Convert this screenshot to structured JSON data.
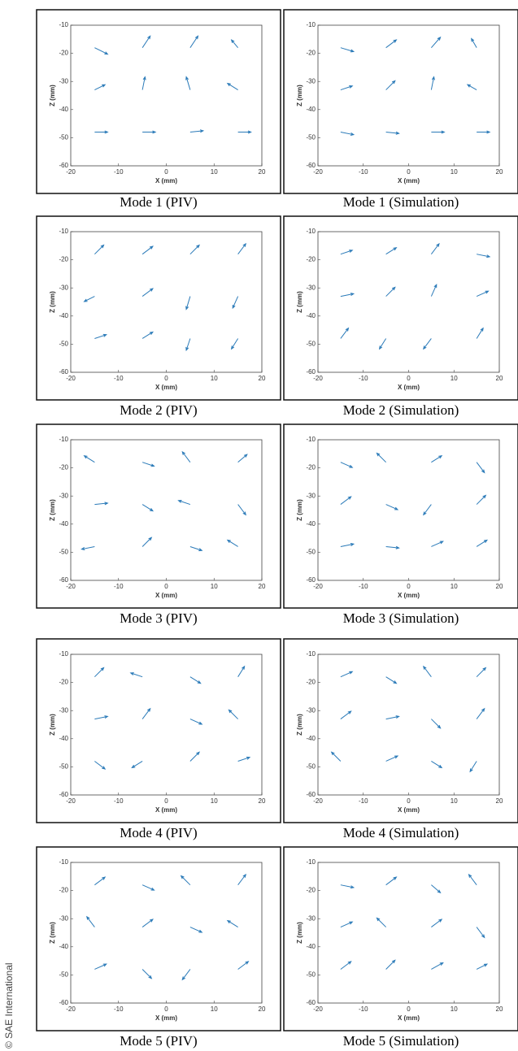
{
  "credit": "© SAE International",
  "chart_data": [
    {
      "type": "quiver",
      "title": "Mode 1 (PIV)",
      "xlabel": "X (mm)",
      "ylabel": "Z (mm)",
      "xlim": [
        -20,
        20
      ],
      "ylim": [
        -60,
        -10
      ],
      "xticks": [
        -20,
        -10,
        0,
        10,
        20
      ],
      "yticks": [
        -10,
        -20,
        -30,
        -40,
        -50,
        -60
      ],
      "color": "#2a7ab8",
      "x": [
        -15,
        -5,
        5,
        15,
        -15,
        -5,
        5,
        15,
        -15,
        -5,
        5,
        15
      ],
      "y": [
        -18,
        -18,
        -18,
        -18,
        -33,
        -33,
        -33,
        -33,
        -48,
        -48,
        -48,
        -48
      ],
      "u": [
        1,
        0.6,
        0.6,
        -0.5,
        0.8,
        0.2,
        -0.3,
        -0.8,
        1,
        1,
        1,
        1
      ],
      "v": [
        -0.5,
        0.9,
        0.9,
        0.6,
        0.4,
        1,
        1,
        0.5,
        0,
        0,
        0.1,
        0
      ]
    },
    {
      "type": "quiver",
      "title": "Mode 1 (Simulation)",
      "xlabel": "X (mm)",
      "ylabel": "Z (mm)",
      "xlim": [
        -20,
        20
      ],
      "ylim": [
        -60,
        -10
      ],
      "xticks": [
        -20,
        -10,
        0,
        10,
        20
      ],
      "yticks": [
        -10,
        -20,
        -30,
        -40,
        -50,
        -60
      ],
      "color": "#2a7ab8",
      "x": [
        -15,
        -5,
        5,
        15,
        -15,
        -5,
        5,
        15,
        -15,
        -5,
        5,
        15
      ],
      "y": [
        -18,
        -18,
        -18,
        -18,
        -33,
        -33,
        -33,
        -33,
        -48,
        -48,
        -48,
        -48
      ],
      "u": [
        1,
        0.8,
        0.7,
        -0.4,
        0.9,
        0.7,
        0.2,
        -0.7,
        1,
        1,
        1,
        1
      ],
      "v": [
        -0.3,
        0.6,
        0.8,
        0.7,
        0.3,
        0.7,
        1,
        0.4,
        -0.2,
        -0.1,
        0,
        0
      ]
    },
    {
      "type": "quiver",
      "title": "Mode 2 (PIV)",
      "xlabel": "X (mm)",
      "ylabel": "Z (mm)",
      "xlim": [
        -20,
        20
      ],
      "ylim": [
        -60,
        -10
      ],
      "xticks": [
        -20,
        -10,
        0,
        10,
        20
      ],
      "yticks": [
        -10,
        -20,
        -30,
        -40,
        -50,
        -60
      ],
      "color": "#2a7ab8",
      "x": [
        -15,
        -5,
        5,
        15,
        -15,
        -5,
        5,
        15,
        -15,
        -5,
        5,
        15
      ],
      "y": [
        -18,
        -18,
        -18,
        -18,
        -33,
        -33,
        -33,
        -33,
        -48,
        -48,
        -48,
        -48
      ],
      "u": [
        0.7,
        0.8,
        0.7,
        0.6,
        -0.8,
        0.8,
        -0.3,
        -0.4,
        0.9,
        0.8,
        -0.3,
        -0.5
      ],
      "v": [
        0.7,
        0.6,
        0.7,
        0.8,
        -0.4,
        0.6,
        -1,
        -0.9,
        0.3,
        0.5,
        -0.9,
        -0.8
      ]
    },
    {
      "type": "quiver",
      "title": "Mode 2 (Simulation)",
      "xlabel": "X (mm)",
      "ylabel": "Z (mm)",
      "xlim": [
        -20,
        20
      ],
      "ylim": [
        -60,
        -10
      ],
      "xticks": [
        -20,
        -10,
        0,
        10,
        20
      ],
      "yticks": [
        -10,
        -20,
        -30,
        -40,
        -50,
        -60
      ],
      "color": "#2a7ab8",
      "x": [
        -15,
        -5,
        5,
        15,
        -15,
        -5,
        5,
        15,
        -15,
        -5,
        5,
        15
      ],
      "y": [
        -18,
        -18,
        -18,
        -18,
        -33,
        -33,
        -33,
        -33,
        -48,
        -48,
        -48,
        -48
      ],
      "u": [
        0.9,
        0.8,
        0.6,
        1,
        1,
        0.7,
        0.4,
        0.9,
        0.6,
        -0.5,
        -0.6,
        0.5
      ],
      "v": [
        0.3,
        0.5,
        0.8,
        -0.2,
        0.2,
        0.7,
        0.9,
        0.4,
        0.8,
        -0.8,
        -0.8,
        0.8
      ]
    },
    {
      "type": "quiver",
      "title": "Mode 3 (PIV)",
      "xlabel": "X (mm)",
      "ylabel": "Z (mm)",
      "xlim": [
        -20,
        20
      ],
      "ylim": [
        -60,
        -10
      ],
      "xticks": [
        -20,
        -10,
        0,
        10,
        20
      ],
      "yticks": [
        -10,
        -20,
        -30,
        -40,
        -50,
        -60
      ],
      "color": "#2a7ab8",
      "x": [
        -15,
        -5,
        5,
        15,
        -15,
        -5,
        5,
        15,
        -15,
        -5,
        5,
        15
      ],
      "y": [
        -18,
        -18,
        -18,
        -18,
        -33,
        -33,
        -33,
        -33,
        -48,
        -48,
        -48,
        -48
      ],
      "u": [
        -0.8,
        0.9,
        -0.6,
        0.7,
        1,
        0.8,
        -0.9,
        0.6,
        -1,
        0.7,
        0.9,
        -0.8
      ],
      "v": [
        0.5,
        -0.3,
        0.8,
        0.6,
        0.1,
        -0.5,
        0.3,
        -0.8,
        -0.2,
        0.7,
        -0.3,
        0.5
      ]
    },
    {
      "type": "quiver",
      "title": "Mode 3 (Simulation)",
      "xlabel": "X (mm)",
      "ylabel": "Z (mm)",
      "xlim": [
        -20,
        20
      ],
      "ylim": [
        -60,
        -10
      ],
      "xticks": [
        -20,
        -10,
        0,
        10,
        20
      ],
      "yticks": [
        -10,
        -20,
        -30,
        -40,
        -50,
        -60
      ],
      "color": "#2a7ab8",
      "x": [
        -15,
        -5,
        5,
        15,
        -15,
        -5,
        5,
        15,
        -15,
        -5,
        5,
        15
      ],
      "y": [
        -18,
        -18,
        -18,
        -18,
        -33,
        -33,
        -33,
        -33,
        -48,
        -48,
        -48,
        -48
      ],
      "u": [
        0.9,
        -0.7,
        0.8,
        0.6,
        0.8,
        0.9,
        -0.6,
        0.7,
        1,
        1,
        0.9,
        0.8
      ],
      "v": [
        -0.4,
        0.7,
        0.5,
        -0.8,
        0.6,
        -0.4,
        -0.8,
        0.7,
        0.2,
        -0.1,
        0.4,
        0.5
      ]
    },
    {
      "type": "quiver",
      "title": "Mode 4 (PIV)",
      "xlabel": "X (mm)",
      "ylabel": "Z (mm)",
      "xlim": [
        -20,
        20
      ],
      "ylim": [
        -60,
        -10
      ],
      "xticks": [
        -20,
        -10,
        0,
        10,
        20
      ],
      "yticks": [
        -10,
        -20,
        -30,
        -40,
        -50,
        -60
      ],
      "color": "#2a7ab8",
      "x": [
        -15,
        -5,
        5,
        15,
        -15,
        -5,
        5,
        15,
        -15,
        -5,
        5,
        15
      ],
      "y": [
        -18,
        -18,
        -18,
        -18,
        -33,
        -33,
        -33,
        -33,
        -48,
        -48,
        -48,
        -48
      ],
      "u": [
        0.7,
        -0.9,
        0.8,
        0.5,
        1,
        0.6,
        0.9,
        -0.7,
        0.8,
        -0.8,
        0.7,
        0.9
      ],
      "v": [
        0.7,
        0.3,
        -0.5,
        0.8,
        0.2,
        0.8,
        -0.4,
        0.7,
        -0.6,
        -0.5,
        0.7,
        0.3
      ]
    },
    {
      "type": "quiver",
      "title": "Mode 4 (Simulation)",
      "xlabel": "X (mm)",
      "ylabel": "Z (mm)",
      "xlim": [
        -20,
        20
      ],
      "ylim": [
        -60,
        -10
      ],
      "xticks": [
        -20,
        -10,
        0,
        10,
        20
      ],
      "yticks": [
        -10,
        -20,
        -30,
        -40,
        -50,
        -60
      ],
      "color": "#2a7ab8",
      "x": [
        -15,
        -5,
        5,
        15,
        -15,
        -5,
        5,
        15,
        -15,
        -5,
        5,
        15
      ],
      "y": [
        -18,
        -18,
        -18,
        -18,
        -33,
        -33,
        -33,
        -33,
        -48,
        -48,
        -48,
        -48
      ],
      "u": [
        0.9,
        0.8,
        -0.6,
        0.7,
        0.8,
        1,
        0.7,
        0.6,
        -0.7,
        0.9,
        0.8,
        -0.5
      ],
      "v": [
        0.4,
        -0.5,
        0.8,
        0.7,
        0.6,
        0.2,
        -0.7,
        0.8,
        0.7,
        0.4,
        -0.5,
        -0.8
      ]
    },
    {
      "type": "quiver",
      "title": "Mode 5 (PIV)",
      "xlabel": "X (mm)",
      "ylabel": "Z (mm)",
      "xlim": [
        -20,
        20
      ],
      "ylim": [
        -60,
        -10
      ],
      "xticks": [
        -20,
        -10,
        0,
        10,
        20
      ],
      "yticks": [
        -10,
        -20,
        -30,
        -40,
        -50,
        -60
      ],
      "color": "#2a7ab8",
      "x": [
        -15,
        -5,
        5,
        15,
        -15,
        -5,
        5,
        15,
        -15,
        -5,
        5,
        15
      ],
      "y": [
        -18,
        -18,
        -18,
        -18,
        -33,
        -33,
        -33,
        -33,
        -48,
        -48,
        -48,
        -48
      ],
      "u": [
        0.8,
        0.9,
        -0.7,
        0.6,
        -0.6,
        0.8,
        0.9,
        -0.8,
        0.9,
        0.7,
        -0.6,
        0.8
      ],
      "v": [
        0.6,
        -0.4,
        0.7,
        0.8,
        0.8,
        0.6,
        -0.4,
        0.5,
        0.4,
        -0.7,
        -0.8,
        0.6
      ]
    },
    {
      "type": "quiver",
      "title": "Mode 5 (Simulation)",
      "xlabel": "X (mm)",
      "ylabel": "Z (mm)",
      "xlim": [
        -20,
        20
      ],
      "ylim": [
        -60,
        -10
      ],
      "xticks": [
        -20,
        -10,
        0,
        10,
        20
      ],
      "yticks": [
        -10,
        -20,
        -30,
        -40,
        -50,
        -60
      ],
      "color": "#2a7ab8",
      "x": [
        -15,
        -5,
        5,
        15,
        -15,
        -5,
        5,
        15,
        -15,
        -5,
        5,
        15
      ],
      "y": [
        -18,
        -18,
        -18,
        -18,
        -33,
        -33,
        -33,
        -33,
        -48,
        -48,
        -48,
        -48
      ],
      "u": [
        1,
        0.8,
        0.7,
        -0.6,
        0.9,
        -0.7,
        0.8,
        0.6,
        0.8,
        0.7,
        0.9,
        0.8
      ],
      "v": [
        -0.2,
        0.6,
        -0.6,
        0.8,
        0.4,
        0.7,
        0.6,
        -0.8,
        0.6,
        0.7,
        0.5,
        0.4
      ]
    }
  ]
}
